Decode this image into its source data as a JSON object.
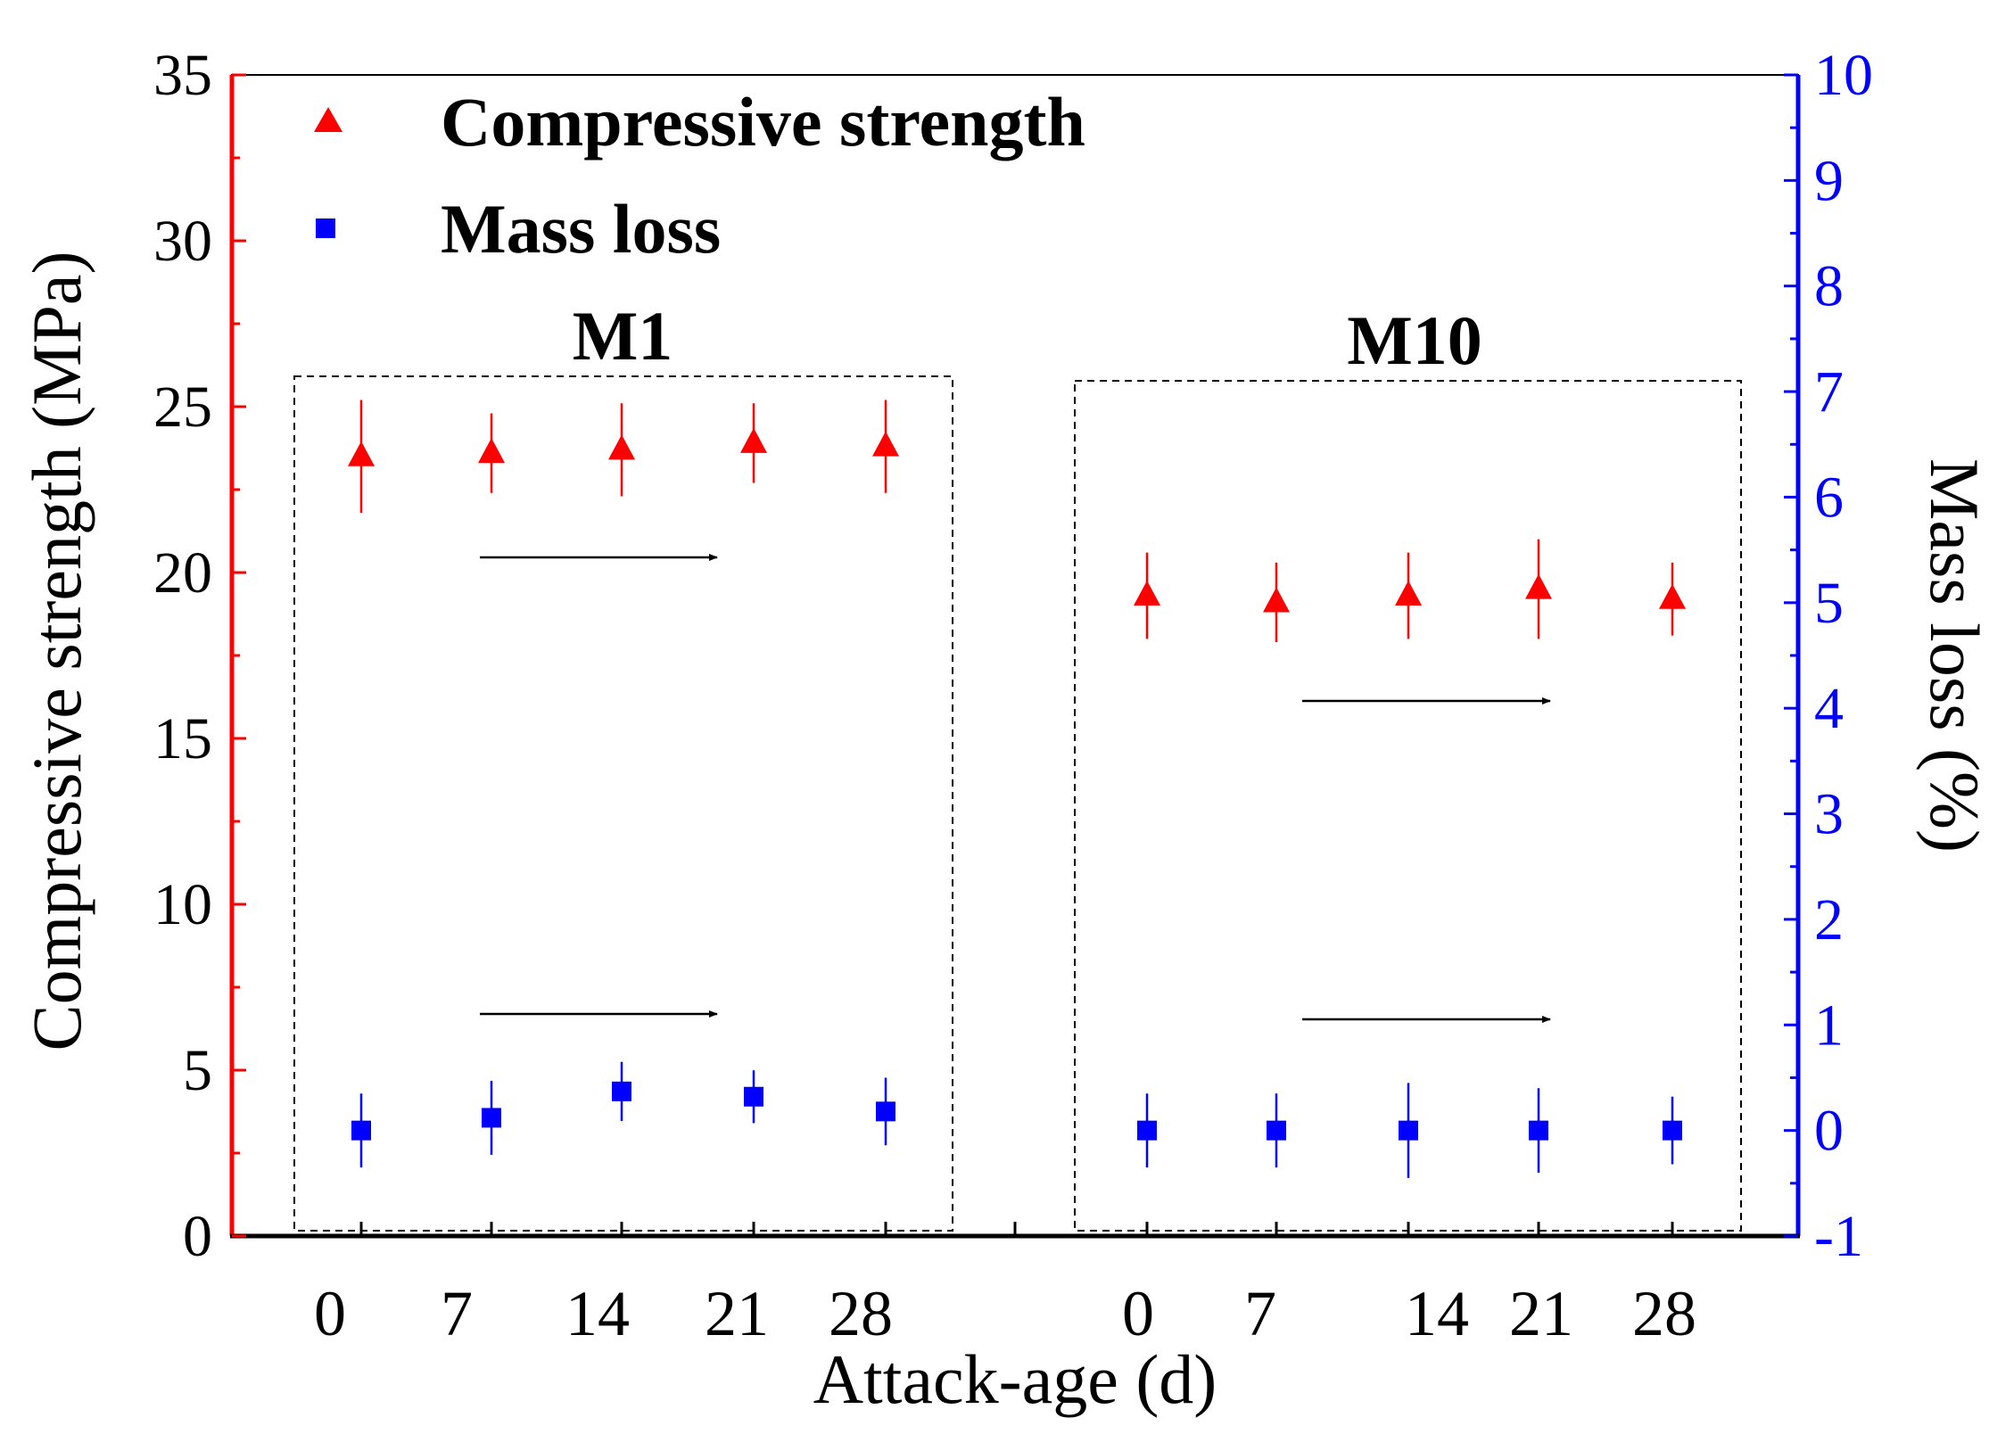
{
  "chart_data": {
    "type": "scatter",
    "xlabel": "Attack-age (d)",
    "ylabel_left": "Compressive strength (MPa)",
    "ylabel_right": "Mass loss (%)",
    "ylim_left": [
      0,
      35
    ],
    "ylim_right": [
      -1,
      10
    ],
    "left_ticks": [
      "0",
      "5",
      "10",
      "15",
      "20",
      "25",
      "30",
      "35"
    ],
    "right_ticks": [
      "-1",
      "0",
      "1",
      "2",
      "3",
      "4",
      "5",
      "6",
      "7",
      "8",
      "9",
      "10"
    ],
    "colors": {
      "left_axis": "#ff0000",
      "right_axis": "#0000ff",
      "strength": "#ff0000",
      "mass": "#0000ff"
    },
    "legend": [
      {
        "label": "Compressive strength",
        "marker": "triangle"
      },
      {
        "label": "Mass loss",
        "marker": "square"
      }
    ],
    "groups": [
      {
        "name": "M1",
        "ages": [
          "0",
          "7",
          "14",
          "21",
          "28"
        ],
        "compressive_strength": [
          23.5,
          23.6,
          23.7,
          23.9,
          23.8
        ],
        "compressive_strength_err": [
          1.7,
          1.2,
          1.4,
          1.2,
          1.4
        ],
        "mass_loss": [
          0.0,
          0.12,
          0.37,
          0.32,
          0.18
        ],
        "mass_loss_err": [
          0.35,
          0.35,
          0.28,
          0.25,
          0.32
        ]
      },
      {
        "name": "M10",
        "ages": [
          "0",
          "7",
          "14",
          "21",
          "28"
        ],
        "compressive_strength": [
          19.3,
          19.1,
          19.3,
          19.5,
          19.2
        ],
        "compressive_strength_err": [
          1.3,
          1.2,
          1.3,
          1.5,
          1.1
        ],
        "mass_loss": [
          0.0,
          0.0,
          0.0,
          0.0,
          0.0
        ],
        "mass_loss_err": [
          0.35,
          0.35,
          0.45,
          0.4,
          0.32
        ]
      }
    ]
  }
}
